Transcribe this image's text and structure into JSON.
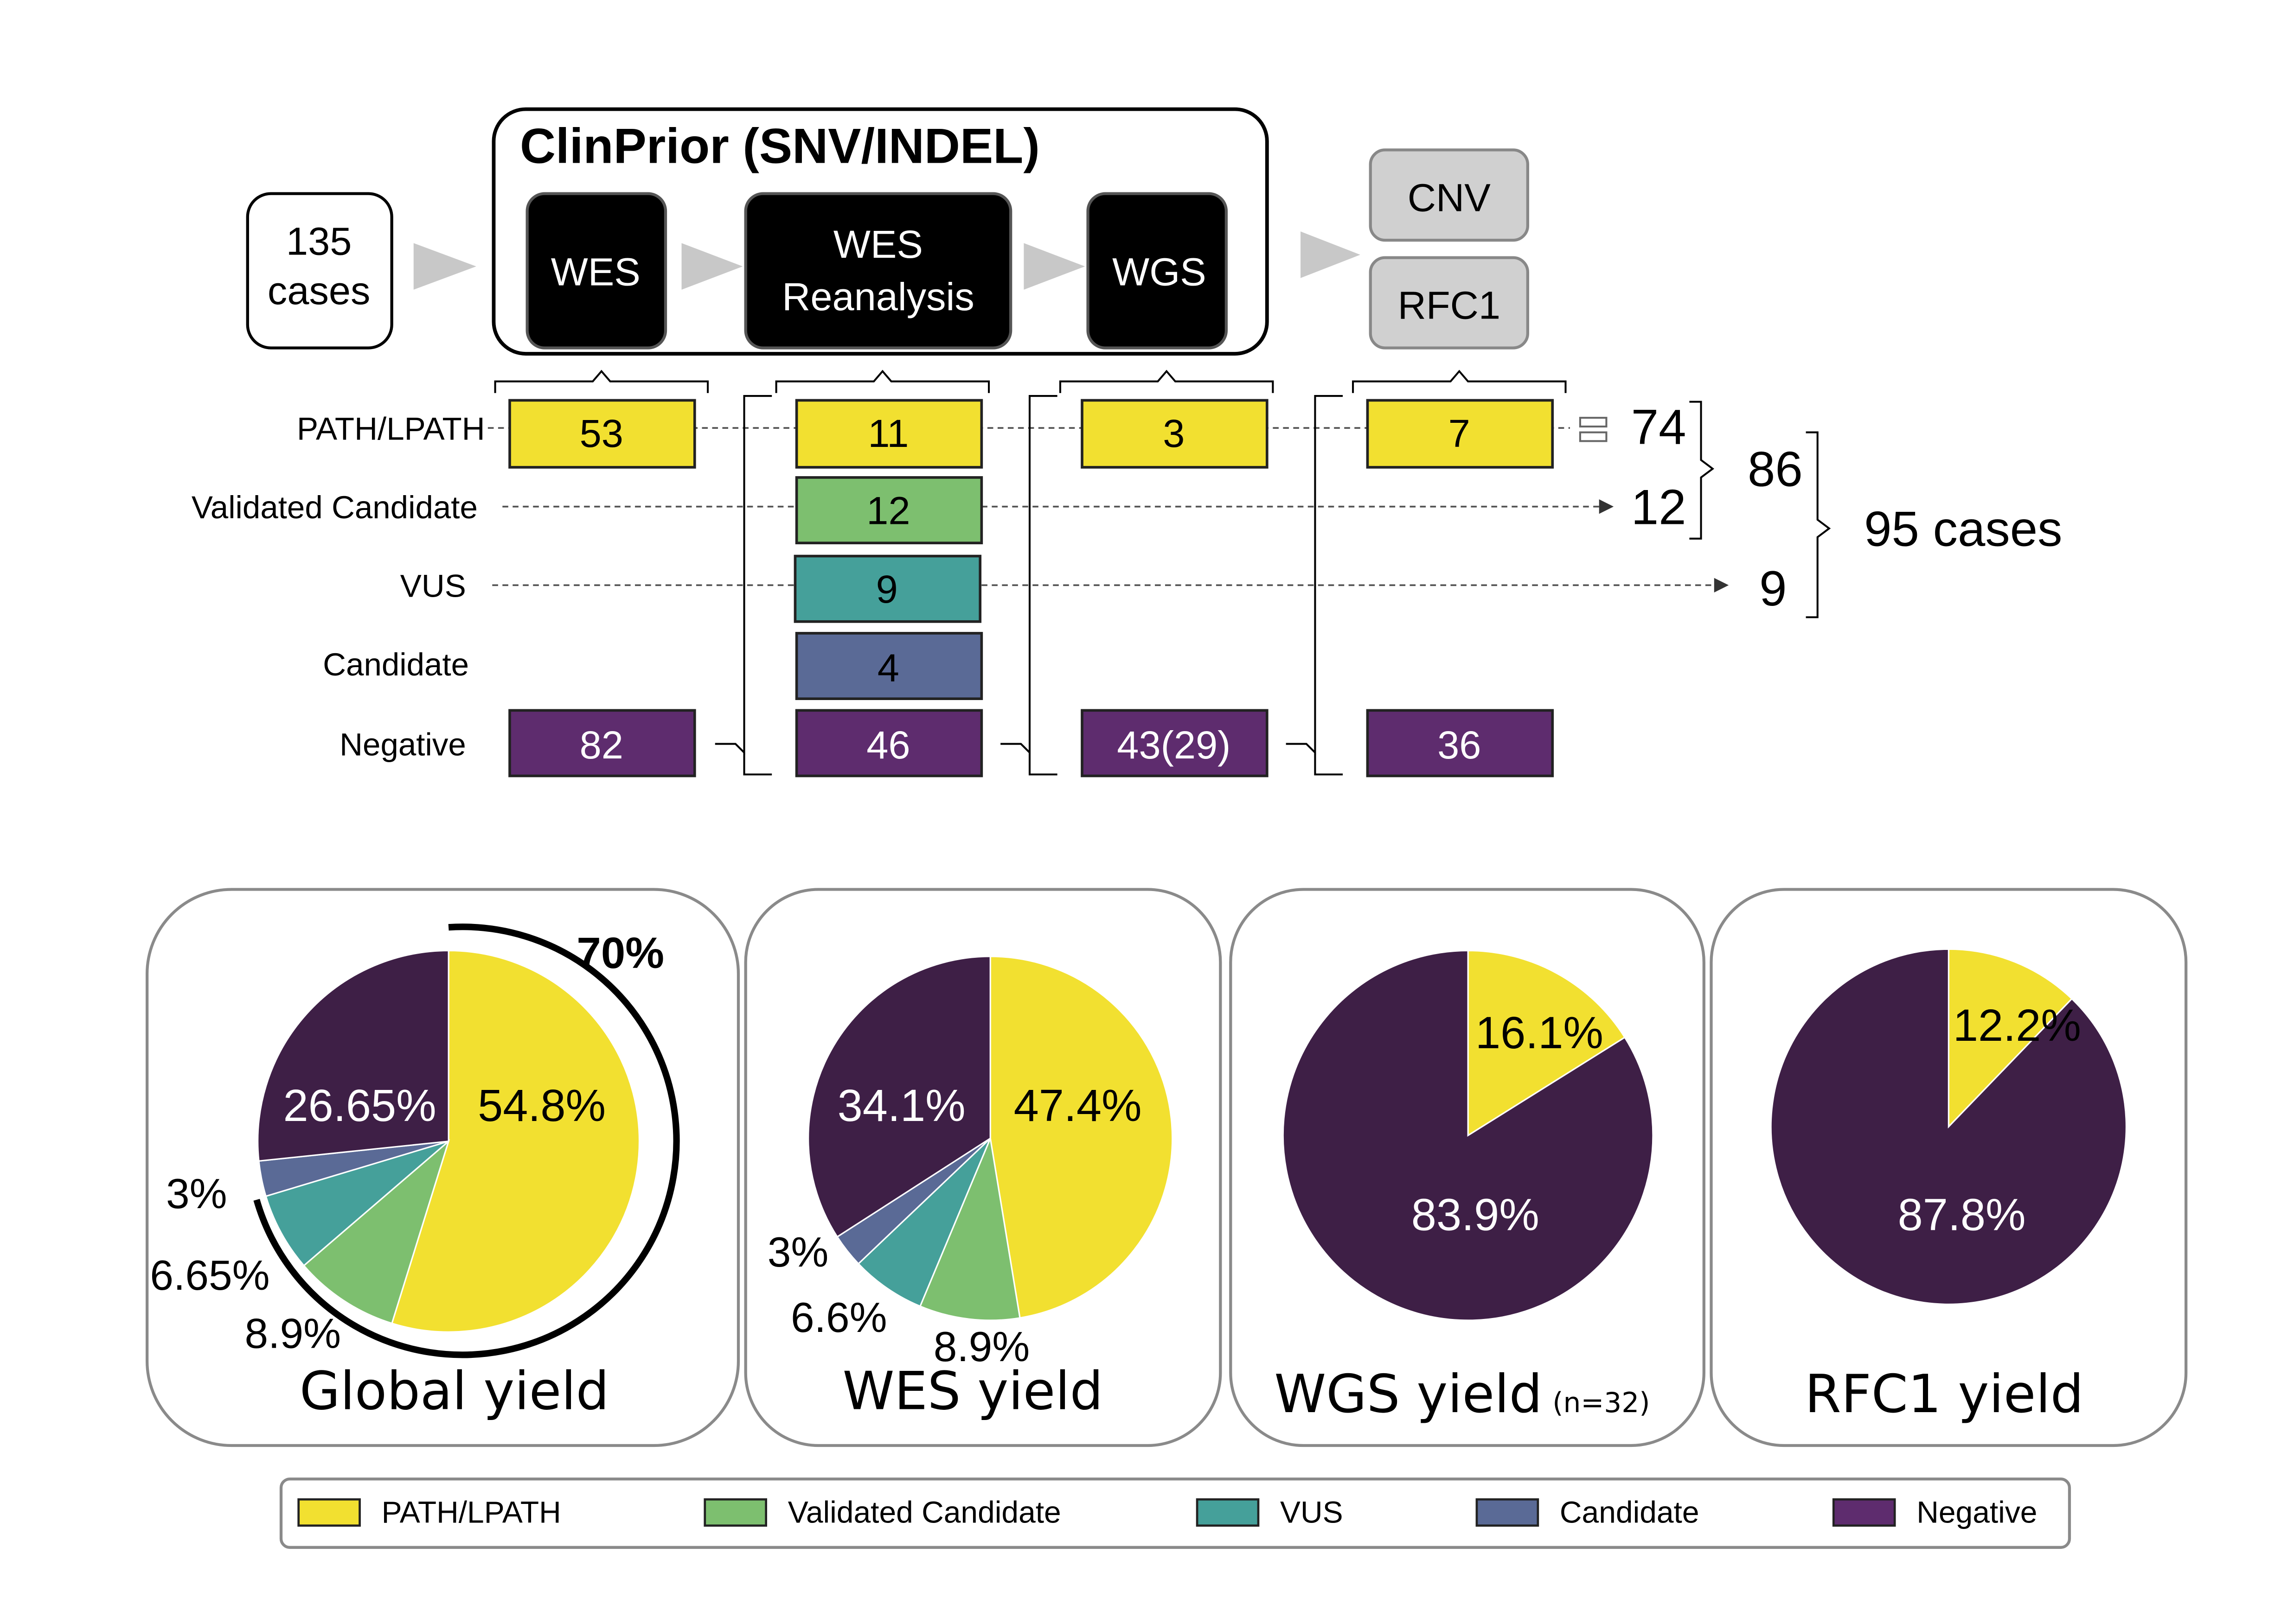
{
  "pipeline": {
    "title": "ClinPrior (SNV/INDEL)",
    "input_line1": "135",
    "input_line2": "cases",
    "steps": [
      "WES",
      "WES",
      "Reanalysis",
      "WGS"
    ],
    "extra_steps": [
      "CNV",
      "RFC1"
    ]
  },
  "rows": {
    "labels": [
      "PATH/LPATH",
      "Validated Candidate",
      "VUS",
      "Candidate",
      "Negative"
    ],
    "path": [
      "53",
      "11",
      "3",
      "7"
    ],
    "validated": [
      "12"
    ],
    "vus": [
      "9"
    ],
    "candidate": [
      "4"
    ],
    "negative": [
      "82",
      "46",
      "43(29)",
      "36"
    ]
  },
  "totals": {
    "path_total": "74",
    "validated_total": "12",
    "vus_total": "9",
    "solved_total": "86",
    "all_total": "95 cases"
  },
  "colors": {
    "path": "#f2e030",
    "validated": "#7dbf6f",
    "vus": "#45a09a",
    "candidate": "#5a6a96",
    "negative": "#5e2c6e",
    "pie_negative": "#3e1f46",
    "dark_step": "#000000",
    "grey_step": "#d0d0d0"
  },
  "chart_data": [
    {
      "type": "pie",
      "title": "Global yield",
      "categories": [
        "PATH/LPATH",
        "Validated Candidate",
        "VUS",
        "Candidate",
        "Negative"
      ],
      "values": [
        54.8,
        8.9,
        6.65,
        3,
        26.65
      ],
      "labels": [
        "54.8%",
        "8.9%",
        "6.65%",
        "3%",
        "26.65%"
      ],
      "annotation": "70%"
    },
    {
      "type": "pie",
      "title": "WES yield",
      "categories": [
        "PATH/LPATH",
        "Validated Candidate",
        "VUS",
        "Candidate",
        "Negative"
      ],
      "values": [
        47.4,
        8.9,
        6.6,
        3,
        34.1
      ],
      "labels": [
        "47.4%",
        "8.9%",
        "6.6%",
        "3%",
        "34.1%"
      ]
    },
    {
      "type": "pie",
      "title": "WGS yield",
      "subtitle": "(n=32)",
      "categories": [
        "PATH/LPATH",
        "Negative"
      ],
      "values": [
        16.1,
        83.9
      ],
      "labels": [
        "16.1%",
        "83.9%"
      ]
    },
    {
      "type": "pie",
      "title": "RFC1 yield",
      "categories": [
        "PATH/LPATH",
        "Negative"
      ],
      "values": [
        12.2,
        87.8
      ],
      "labels": [
        "12.2%",
        "87.8%"
      ]
    }
  ],
  "legend": [
    "PATH/LPATH",
    "Validated Candidate",
    "VUS",
    "Candidate",
    "Negative"
  ]
}
